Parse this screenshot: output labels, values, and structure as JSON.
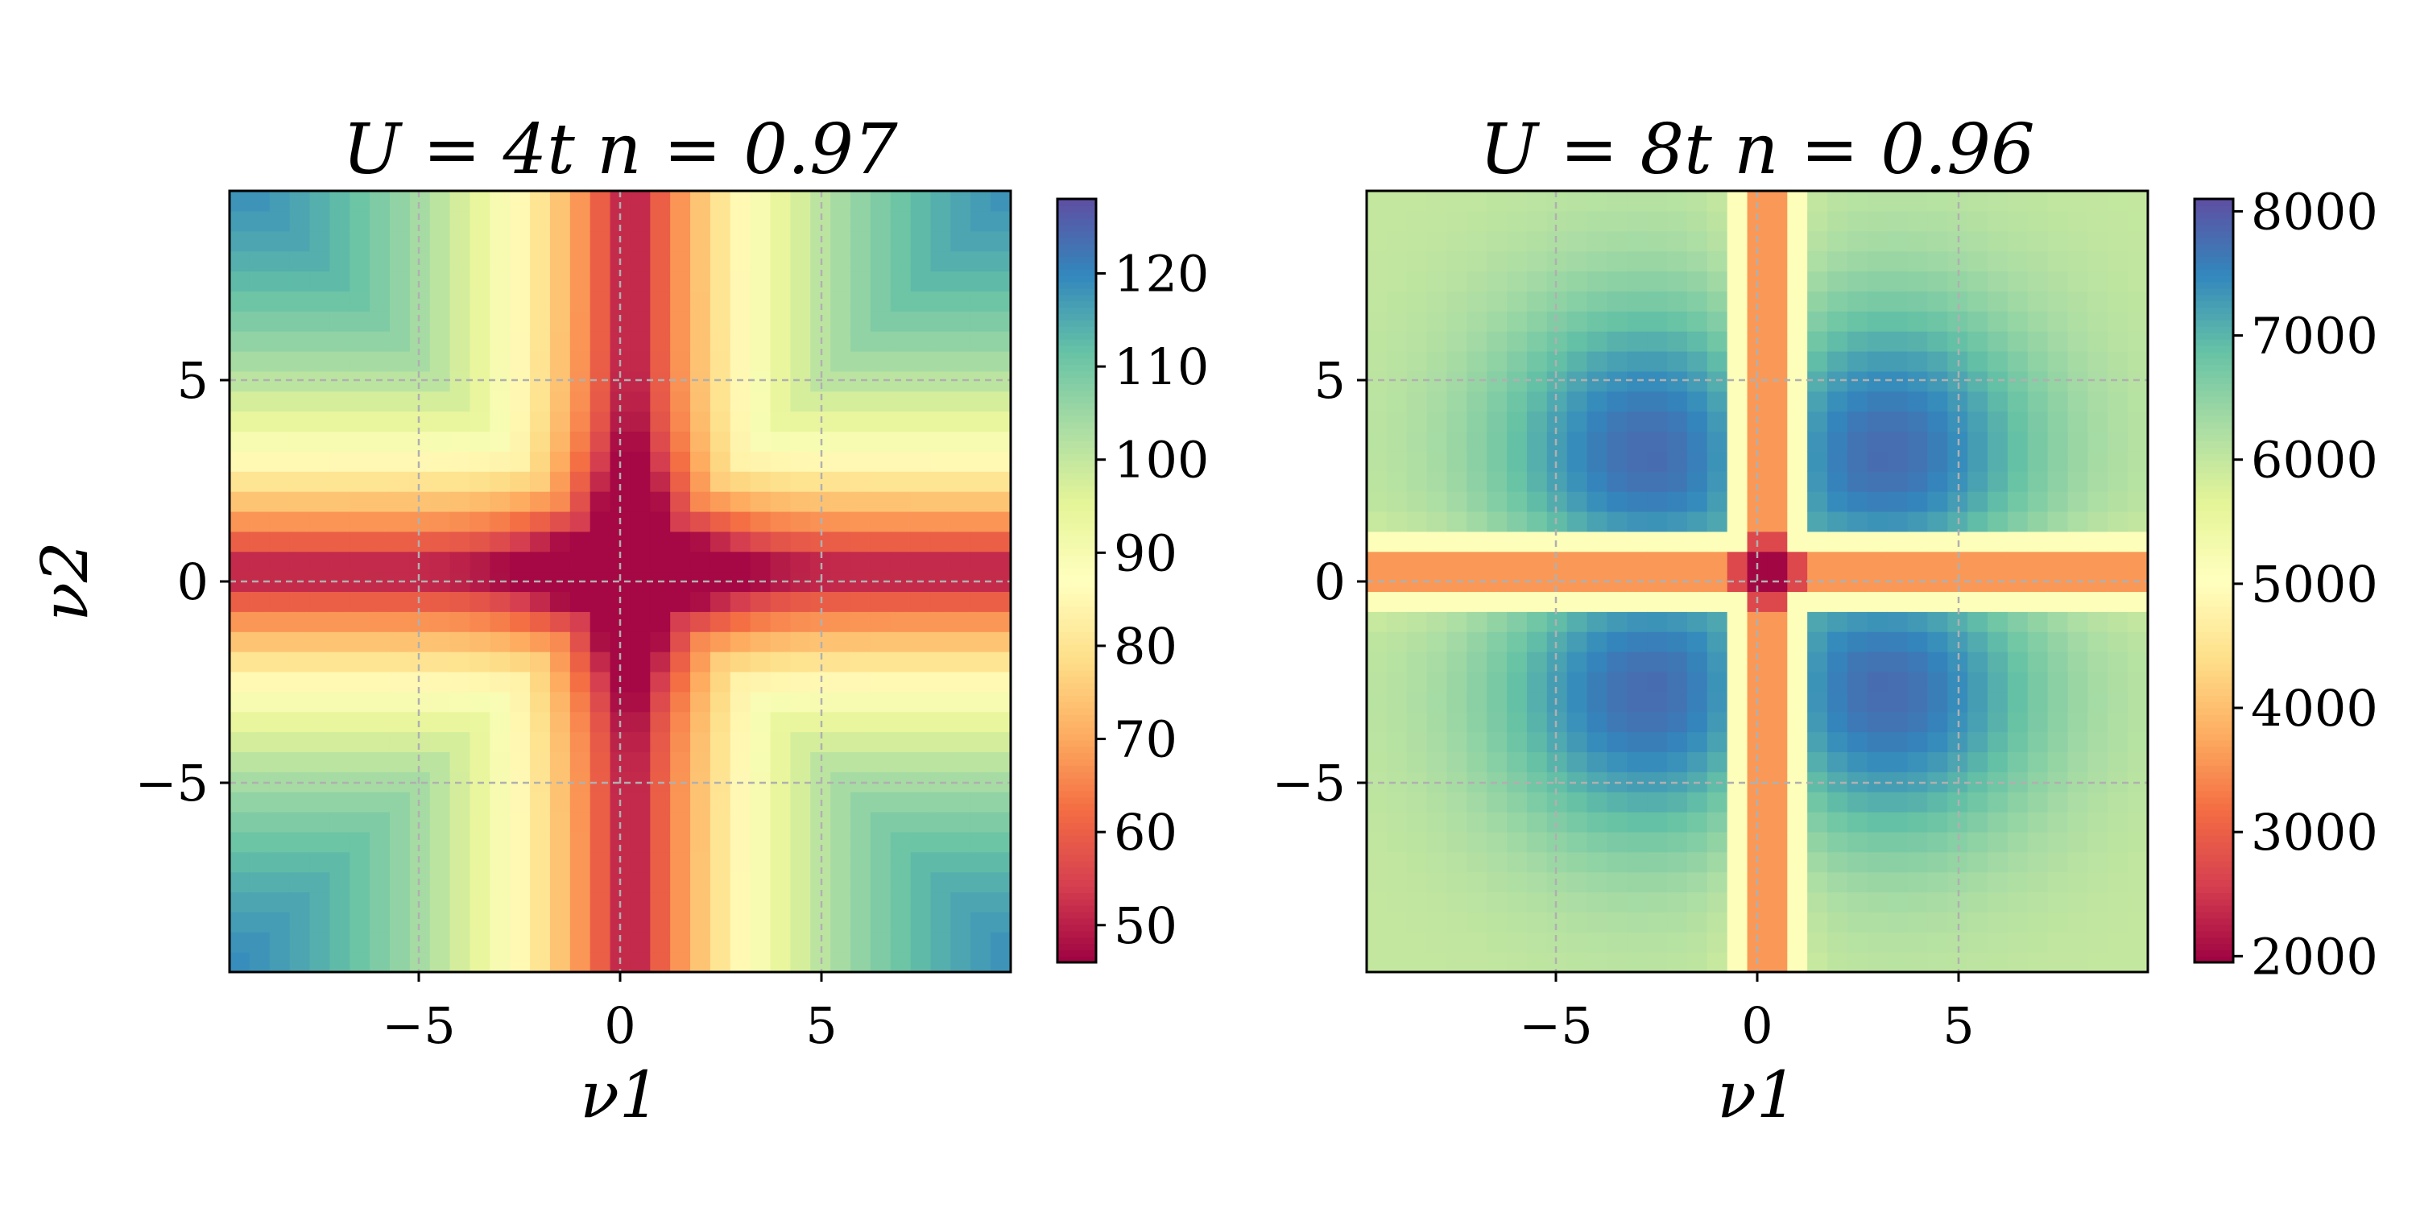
{
  "chart_data": [
    {
      "type": "heatmap",
      "title": "U = 4t    n = 0.97",
      "xlabel": "ν1",
      "ylabel": "ν2",
      "x_range": [
        -9.7,
        9.7
      ],
      "y_range": [
        -9.7,
        9.7
      ],
      "x_ticks": [
        "−5",
        "0",
        "5"
      ],
      "x_tick_values": [
        -5,
        0,
        5
      ],
      "y_ticks": [
        "−5",
        "0",
        "5"
      ],
      "y_tick_values": [
        -5,
        0,
        5
      ],
      "grid": true,
      "colormap": "Spectral",
      "colorbar_range": [
        46,
        128
      ],
      "colorbar_ticks": [
        "50",
        "60",
        "70",
        "80",
        "90",
        "100",
        "110",
        "120"
      ],
      "colorbar_tick_values": [
        50,
        60,
        70,
        80,
        90,
        100,
        110,
        120
      ],
      "grid_size": 39,
      "pattern": {
        "center_value": 47,
        "corner_value": 127,
        "cross_sharpness": 0.7,
        "cross_strength": 0.45,
        "offset": 0.25,
        "cross_center_value": 70
      }
    },
    {
      "type": "heatmap",
      "title": "U = 8t    n = 0.96",
      "xlabel": "ν1",
      "ylabel": "",
      "x_range": [
        -9.7,
        9.7
      ],
      "y_range": [
        -9.7,
        9.7
      ],
      "x_ticks": [
        "−5",
        "0",
        "5"
      ],
      "x_tick_values": [
        -5,
        0,
        5
      ],
      "y_ticks": [
        "−5",
        "0",
        "5"
      ],
      "y_tick_values": [
        -5,
        0,
        5
      ],
      "grid": true,
      "colormap": "Spectral",
      "colorbar_range": [
        1950,
        8100
      ],
      "colorbar_ticks": [
        "2000",
        "3000",
        "4000",
        "5000",
        "6000",
        "7000",
        "8000"
      ],
      "colorbar_tick_values": [
        2000,
        3000,
        4000,
        5000,
        6000,
        7000,
        8000
      ],
      "grid_size": 39,
      "pattern": {
        "center_value": 2000,
        "band_value": 3600,
        "lobe_value": 7900,
        "corner_value": 6300,
        "offset": 0.25
      }
    }
  ]
}
